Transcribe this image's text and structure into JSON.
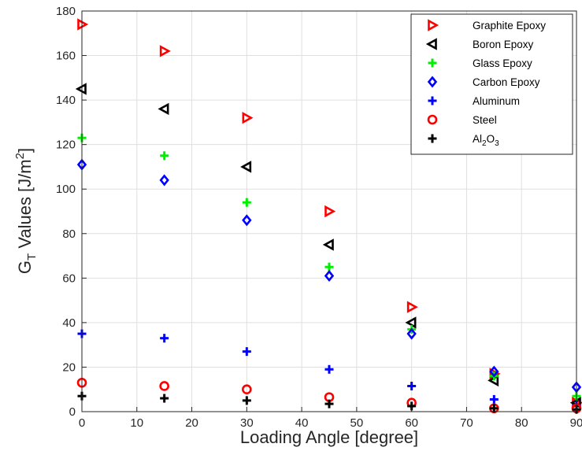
{
  "chart_data": {
    "type": "scatter",
    "xlabel": "Loading Angle [degree]",
    "ylabel": {
      "prefix": "G",
      "sub": "T",
      "mid": " Values [J/m",
      "sup": "2",
      "suffix": "]"
    },
    "xlim": [
      0,
      90
    ],
    "ylim": [
      0,
      180
    ],
    "xticks": [
      "0",
      "10",
      "20",
      "30",
      "40",
      "50",
      "60",
      "70",
      "80",
      "90"
    ],
    "yticks": [
      "0",
      "20",
      "40",
      "60",
      "80",
      "100",
      "120",
      "140",
      "160",
      "180"
    ],
    "grid": true,
    "legend_position": "top-right",
    "x": [
      0,
      15,
      30,
      45,
      60,
      75,
      90
    ],
    "series": [
      {
        "name": "Graphite Epoxy",
        "marker": "triangle-right",
        "color": "#ff0000",
        "values": [
          174,
          162,
          132,
          90,
          47,
          17,
          4
        ]
      },
      {
        "name": "Boron Epoxy",
        "marker": "triangle-left",
        "color": "#000000",
        "values": [
          145,
          136,
          110,
          75,
          40,
          14,
          4
        ]
      },
      {
        "name": "Glass Epoxy",
        "marker": "plus",
        "color": "#00ee00",
        "values": [
          123,
          115,
          94,
          65,
          37,
          16,
          7
        ]
      },
      {
        "name": "Carbon Epoxy",
        "marker": "diamond",
        "color": "#0000ff",
        "values": [
          111,
          104,
          86,
          61,
          35,
          18,
          11
        ]
      },
      {
        "name": "Aluminum",
        "marker": "plus",
        "color": "#0000ff",
        "values": [
          35,
          33,
          27,
          19,
          11.5,
          5.5,
          3
        ]
      },
      {
        "name": "Steel",
        "marker": "circle",
        "color": "#ff0000",
        "values": [
          13,
          11.5,
          10,
          6.5,
          4,
          1.5,
          1.5
        ]
      },
      {
        "name": "Al2O3",
        "label": {
          "pre": "Al",
          "sub1": "2",
          "mid": "O",
          "sub2": "3"
        },
        "marker": "plus",
        "color": "#000000",
        "values": [
          7,
          6,
          5,
          3.5,
          2.5,
          1.5,
          1
        ]
      }
    ]
  }
}
